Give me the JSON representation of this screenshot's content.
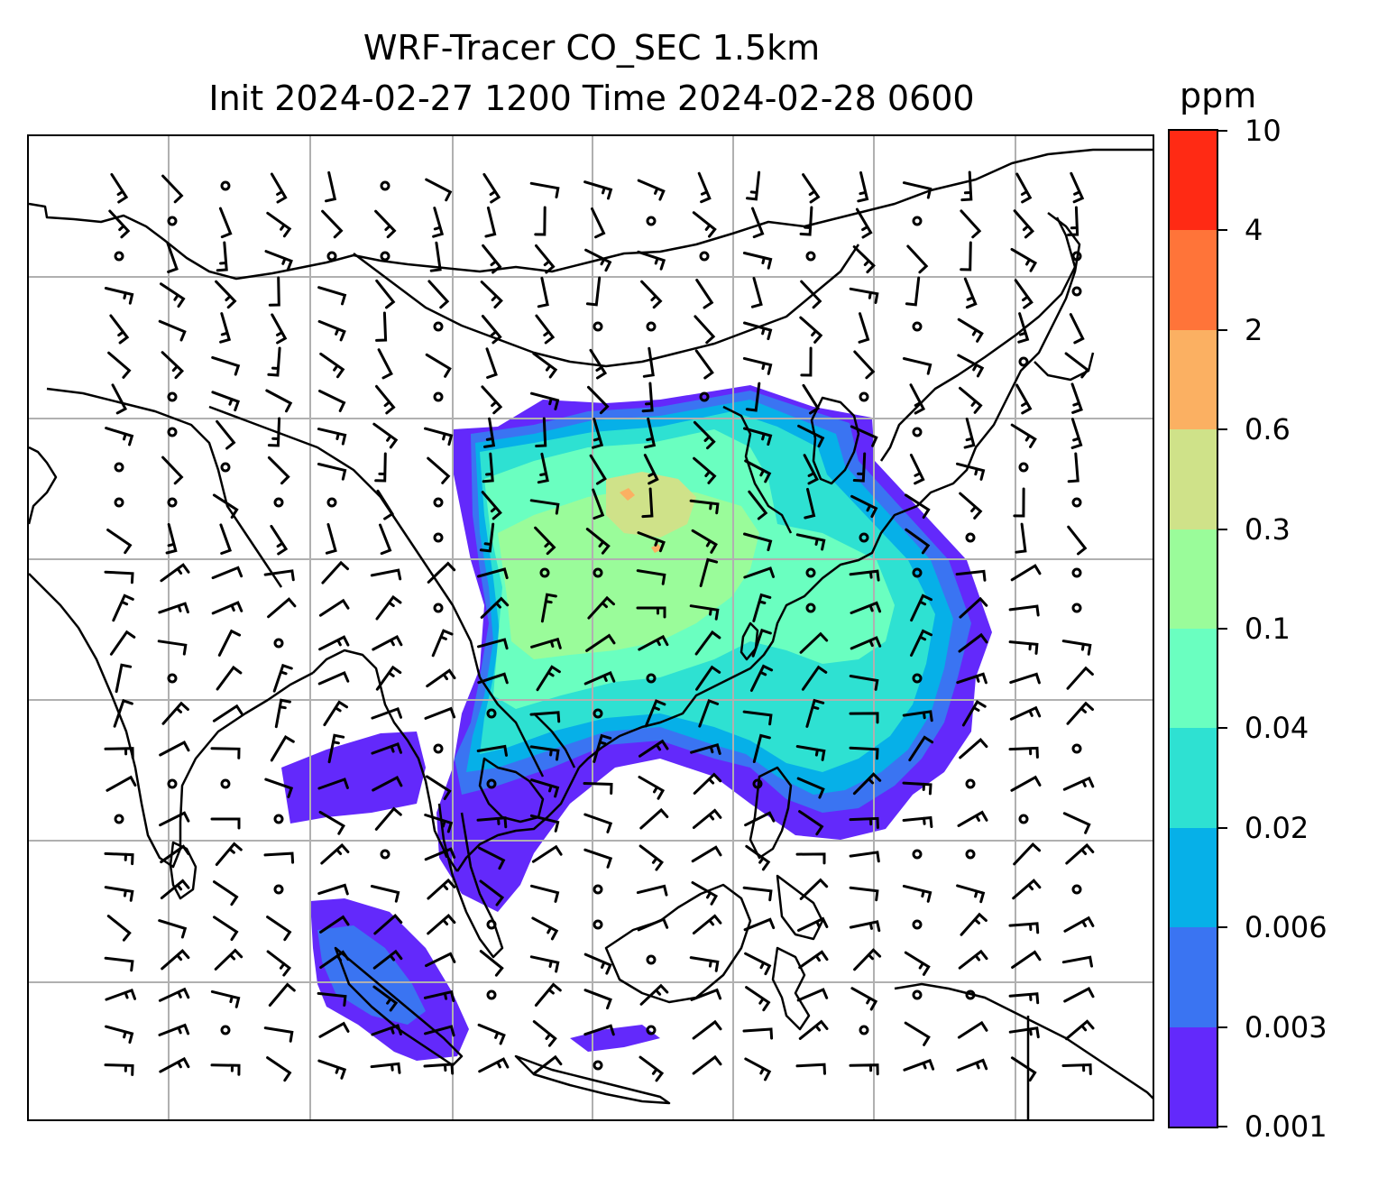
{
  "title": {
    "line1": "WRF-Tracer CO_SEC 1.5km",
    "line2": "Init 2024-02-27 1200 Time 2024-02-28 0600"
  },
  "colorbar": {
    "unit": "ppm",
    "levels": [
      "0.001",
      "0.003",
      "0.006",
      "0.02",
      "0.04",
      "0.1",
      "0.3",
      "0.6",
      "2",
      "4",
      "10"
    ],
    "colors": [
      "#6329fb",
      "#3a74f2",
      "#06b0e8",
      "#2ee1d2",
      "#6affc0",
      "#9afc9a",
      "#cfe289",
      "#fbb062",
      "#ff7439",
      "#ff2a14"
    ]
  },
  "map": {
    "gridlines": true,
    "field_colors": {
      "level1": "#6329fb",
      "level2": "#3a74f2",
      "level3": "#06b0e8",
      "level4": "#2ee1d2",
      "level5": "#6affc0",
      "level6": "#9afc9a",
      "level7": "#cfe289",
      "level8": "#fbb062"
    },
    "coastline_color": "#000000",
    "grid_color": "#b0b0b0"
  }
}
